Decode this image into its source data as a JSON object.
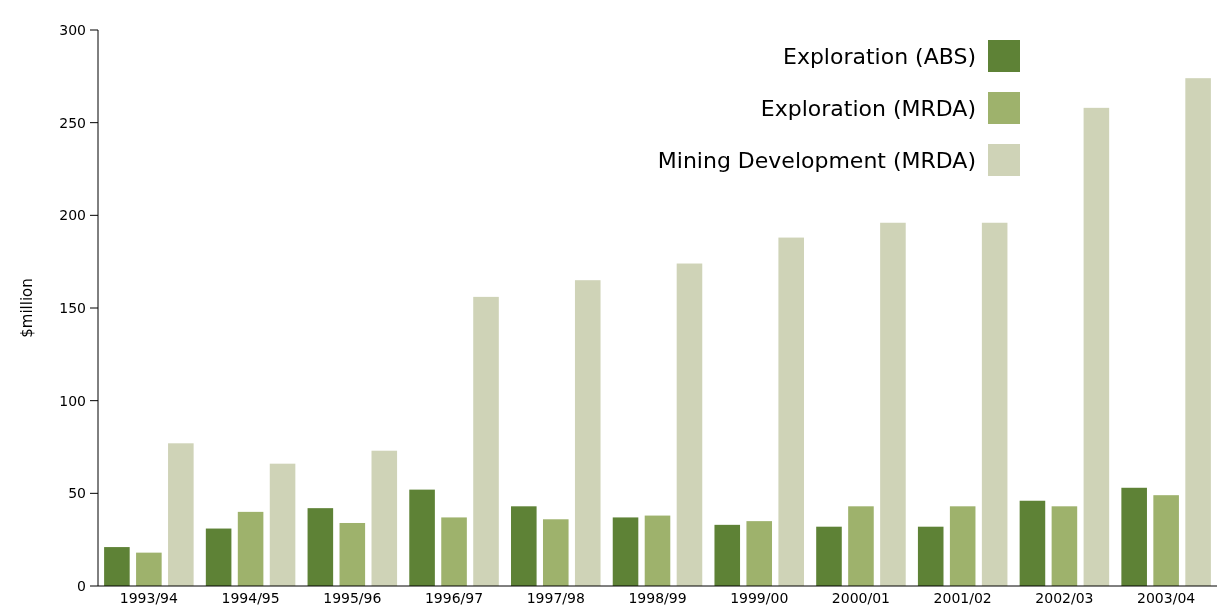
{
  "chart_data": {
    "type": "bar",
    "ylabel": "$million",
    "categories": [
      "1993/94",
      "1994/95",
      "1995/96",
      "1996/97",
      "1997/98",
      "1998/99",
      "1999/00",
      "2000/01",
      "2001/02",
      "2002/03",
      "2003/04"
    ],
    "series": [
      {
        "name": "Exploration (ABS)",
        "color": "#5e8236",
        "values": [
          21,
          31,
          42,
          52,
          43,
          37,
          33,
          32,
          32,
          46,
          53
        ]
      },
      {
        "name": "Exploration (MRDA)",
        "color": "#9eb26c",
        "values": [
          18,
          40,
          34,
          37,
          36,
          38,
          35,
          43,
          43,
          43,
          49
        ]
      },
      {
        "name": "Mining Development (MRDA)",
        "color": "#cfd3b7",
        "values": [
          77,
          66,
          73,
          156,
          165,
          174,
          188,
          196,
          196,
          258,
          274
        ]
      }
    ],
    "ylim": [
      0,
      300
    ],
    "yticks": [
      0,
      50,
      100,
      150,
      200,
      250,
      300
    ],
    "grid": false,
    "legend": "top right"
  }
}
